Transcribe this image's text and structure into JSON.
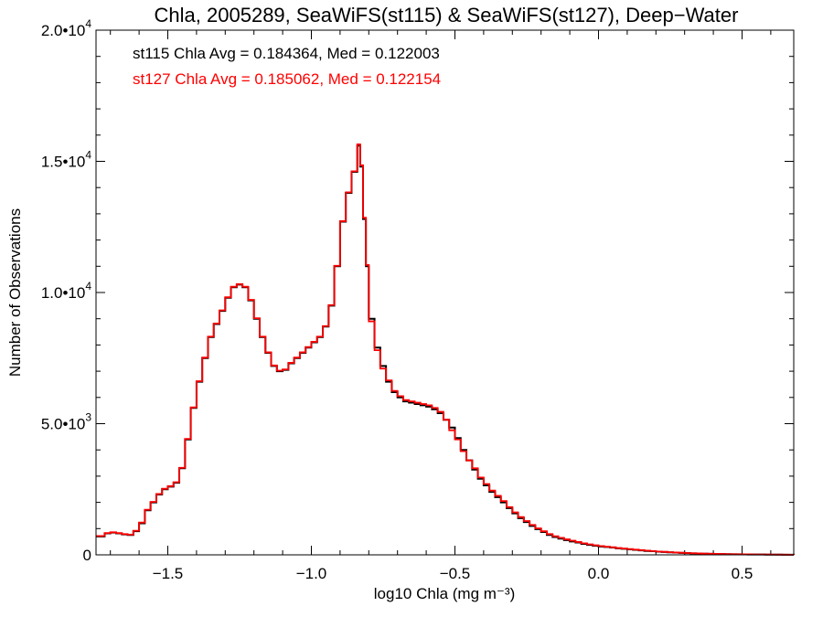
{
  "chart_data": {
    "type": "line",
    "title": "Chla, 2005289, SeaWiFS(st115) & SeaWiFS(st127), Deep−Water",
    "xlabel": "log10 Chla (mg m⁻³)",
    "ylabel": "Number of Observations",
    "xlim": [
      -1.75,
      0.68
    ],
    "ylim": [
      0,
      20000
    ],
    "x_ticks": [
      -1.5,
      -1.0,
      -0.5,
      0.0,
      0.5
    ],
    "x_tick_labels": [
      "−1.5",
      "−1.0",
      "−0.5",
      "0.0",
      "0.5"
    ],
    "y_ticks": [
      0,
      5000,
      10000,
      15000,
      20000
    ],
    "y_tick_labels": [
      {
        "mant": "0",
        "exp": ""
      },
      {
        "mant": "5.0•10",
        "exp": "3"
      },
      {
        "mant": "1.0•10",
        "exp": "4"
      },
      {
        "mant": "1.5•10",
        "exp": "4"
      },
      {
        "mant": "2.0•10",
        "exp": "4"
      }
    ],
    "annotations": [
      {
        "text": "st115 Chla Avg = 0.184364, Med = 0.122003",
        "color": "#000000"
      },
      {
        "text": "st127 Chla Avg = 0.185062, Med = 0.122154",
        "color": "#ff0000"
      }
    ],
    "series": [
      {
        "color": "#000000",
        "x": [
          -1.75,
          -1.72,
          -1.7,
          -1.68,
          -1.66,
          -1.64,
          -1.62,
          -1.6,
          -1.58,
          -1.56,
          -1.54,
          -1.52,
          -1.5,
          -1.48,
          -1.46,
          -1.44,
          -1.42,
          -1.4,
          -1.38,
          -1.36,
          -1.34,
          -1.32,
          -1.3,
          -1.28,
          -1.26,
          -1.24,
          -1.22,
          -1.2,
          -1.18,
          -1.16,
          -1.14,
          -1.12,
          -1.1,
          -1.08,
          -1.06,
          -1.04,
          -1.02,
          -1.0,
          -0.98,
          -0.96,
          -0.94,
          -0.92,
          -0.9,
          -0.88,
          -0.86,
          -0.84,
          -0.83,
          -0.82,
          -0.81,
          -0.8,
          -0.78,
          -0.76,
          -0.74,
          -0.72,
          -0.7,
          -0.68,
          -0.66,
          -0.64,
          -0.62,
          -0.6,
          -0.58,
          -0.56,
          -0.54,
          -0.52,
          -0.5,
          -0.48,
          -0.46,
          -0.44,
          -0.42,
          -0.4,
          -0.38,
          -0.36,
          -0.34,
          -0.32,
          -0.3,
          -0.28,
          -0.26,
          -0.24,
          -0.22,
          -0.2,
          -0.18,
          -0.16,
          -0.14,
          -0.12,
          -0.1,
          -0.08,
          -0.06,
          -0.04,
          -0.02,
          0.0,
          0.02,
          0.04,
          0.06,
          0.08,
          0.1,
          0.12,
          0.14,
          0.16,
          0.18,
          0.2,
          0.22,
          0.24,
          0.26,
          0.28,
          0.3,
          0.32,
          0.34,
          0.36,
          0.38,
          0.4,
          0.42,
          0.44,
          0.46,
          0.48,
          0.5,
          0.52,
          0.54,
          0.56,
          0.58,
          0.6,
          0.62,
          0.64,
          0.66,
          0.68
        ],
        "values": [
          700,
          820,
          850,
          820,
          780,
          760,
          900,
          1200,
          1700,
          2000,
          2300,
          2500,
          2600,
          2750,
          3300,
          4400,
          5600,
          6600,
          7500,
          8300,
          8800,
          9300,
          9800,
          10200,
          10300,
          10200,
          9700,
          9000,
          8300,
          7700,
          7200,
          7000,
          7050,
          7300,
          7500,
          7700,
          7900,
          8100,
          8300,
          8700,
          9500,
          11000,
          12700,
          13800,
          14600,
          15600,
          14800,
          12800,
          11000,
          9000,
          7900,
          7200,
          6600,
          6200,
          6000,
          5850,
          5800,
          5750,
          5700,
          5650,
          5550,
          5400,
          5150,
          4850,
          4450,
          4000,
          3600,
          3250,
          2900,
          2650,
          2400,
          2200,
          2000,
          1780,
          1580,
          1400,
          1250,
          1100,
          980,
          870,
          760,
          680,
          620,
          560,
          510,
          470,
          420,
          380,
          350,
          320,
          300,
          280,
          250,
          230,
          210,
          190,
          170,
          150,
          140,
          120,
          110,
          95,
          85,
          75,
          65,
          55,
          50,
          45,
          40,
          35,
          30,
          25,
          22,
          20,
          18,
          15,
          13,
          11,
          10,
          8,
          7,
          6,
          5,
          4
        ]
      },
      {
        "color": "#ff0000",
        "x": [
          -1.75,
          -1.72,
          -1.7,
          -1.68,
          -1.66,
          -1.64,
          -1.62,
          -1.6,
          -1.58,
          -1.56,
          -1.54,
          -1.52,
          -1.5,
          -1.48,
          -1.46,
          -1.44,
          -1.42,
          -1.4,
          -1.38,
          -1.36,
          -1.34,
          -1.32,
          -1.3,
          -1.28,
          -1.26,
          -1.24,
          -1.22,
          -1.2,
          -1.18,
          -1.16,
          -1.14,
          -1.12,
          -1.1,
          -1.08,
          -1.06,
          -1.04,
          -1.02,
          -1.0,
          -0.98,
          -0.96,
          -0.94,
          -0.92,
          -0.9,
          -0.88,
          -0.86,
          -0.84,
          -0.83,
          -0.82,
          -0.81,
          -0.8,
          -0.78,
          -0.76,
          -0.74,
          -0.72,
          -0.7,
          -0.68,
          -0.66,
          -0.64,
          -0.62,
          -0.6,
          -0.58,
          -0.56,
          -0.54,
          -0.52,
          -0.5,
          -0.48,
          -0.46,
          -0.44,
          -0.42,
          -0.4,
          -0.38,
          -0.36,
          -0.34,
          -0.32,
          -0.3,
          -0.28,
          -0.26,
          -0.24,
          -0.22,
          -0.2,
          -0.18,
          -0.16,
          -0.14,
          -0.12,
          -0.1,
          -0.08,
          -0.06,
          -0.04,
          -0.02,
          0.0,
          0.02,
          0.04,
          0.06,
          0.08,
          0.1,
          0.12,
          0.14,
          0.16,
          0.18,
          0.2,
          0.22,
          0.24,
          0.26,
          0.28,
          0.3,
          0.32,
          0.34,
          0.36,
          0.38,
          0.4,
          0.42,
          0.44,
          0.46,
          0.48,
          0.5,
          0.52,
          0.54,
          0.56,
          0.58,
          0.6,
          0.62,
          0.64,
          0.66,
          0.68
        ],
        "values": [
          720,
          830,
          860,
          830,
          790,
          770,
          920,
          1230,
          1720,
          2020,
          2320,
          2520,
          2620,
          2770,
          3320,
          4420,
          5620,
          6620,
          7520,
          8320,
          8820,
          9320,
          9820,
          10220,
          10320,
          10220,
          9720,
          9020,
          8320,
          7720,
          7220,
          7020,
          7070,
          7320,
          7520,
          7720,
          7920,
          8120,
          8320,
          8720,
          9520,
          11020,
          12720,
          13820,
          14620,
          15650,
          14850,
          12850,
          11050,
          8900,
          7800,
          7100,
          6650,
          6250,
          6050,
          5900,
          5850,
          5800,
          5750,
          5700,
          5600,
          5450,
          5150,
          4750,
          4400,
          3950,
          3600,
          3300,
          2950,
          2700,
          2450,
          2250,
          2050,
          1820,
          1620,
          1440,
          1290,
          1140,
          1010,
          900,
          790,
          710,
          650,
          590,
          540,
          490,
          440,
          400,
          365,
          335,
          310,
          290,
          260,
          240,
          220,
          200,
          180,
          160,
          145,
          125,
          115,
          100,
          90,
          80,
          70,
          60,
          55,
          48,
          42,
          37,
          32,
          27,
          24,
          21,
          19,
          16,
          14,
          12,
          10,
          9,
          7,
          6,
          5,
          4
        ]
      }
    ]
  }
}
